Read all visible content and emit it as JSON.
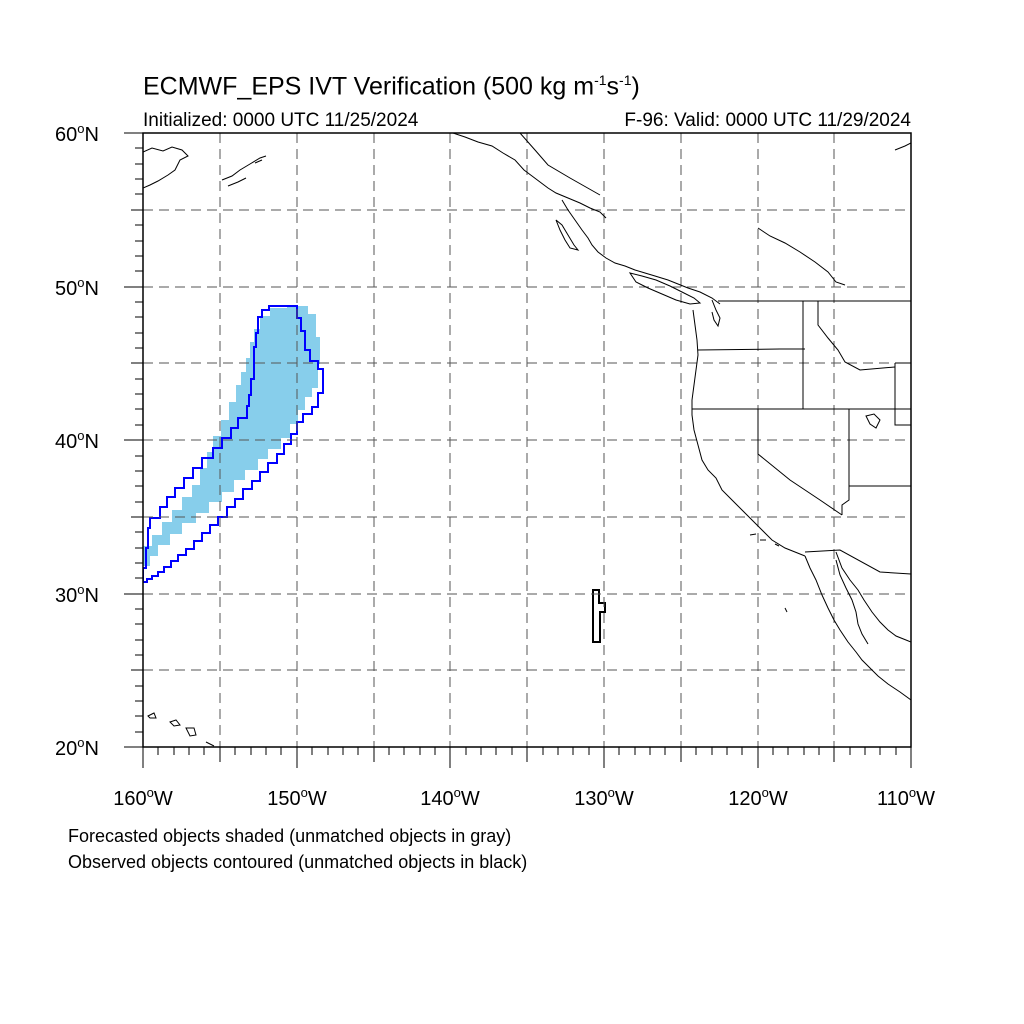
{
  "header": {
    "title_main": "ECMWF_EPS IVT Verification (500 kg m",
    "title_exp1": "-1",
    "title_mid": "s",
    "title_exp2": "-1",
    "title_end": ")",
    "initialized": "Initialized: 0000 UTC 11/25/2024",
    "valid": "F-96: Valid: 0000 UTC 11/29/2024"
  },
  "axes": {
    "lat_labels": [
      "60",
      "50",
      "40",
      "30",
      "20"
    ],
    "lat_suffix": "N",
    "lon_labels": [
      "160",
      "150",
      "140",
      "130",
      "120",
      "110"
    ],
    "lon_suffix": "W",
    "degree_symbol": "o"
  },
  "map": {
    "lat_range": [
      20,
      60
    ],
    "lon_range": [
      -160,
      -110
    ],
    "grid": "dashed every 5 degrees",
    "colors": {
      "forecast_matched_fill": "#87ceeb",
      "observed_matched_contour": "#0000ff",
      "observed_unmatched_contour": "#000000",
      "coastline": "#000000"
    }
  },
  "legend": {
    "line1": "Forecasted objects shaded (unmatched objects in gray)",
    "line2": "Observed objects contoured (unmatched objects in black)"
  }
}
